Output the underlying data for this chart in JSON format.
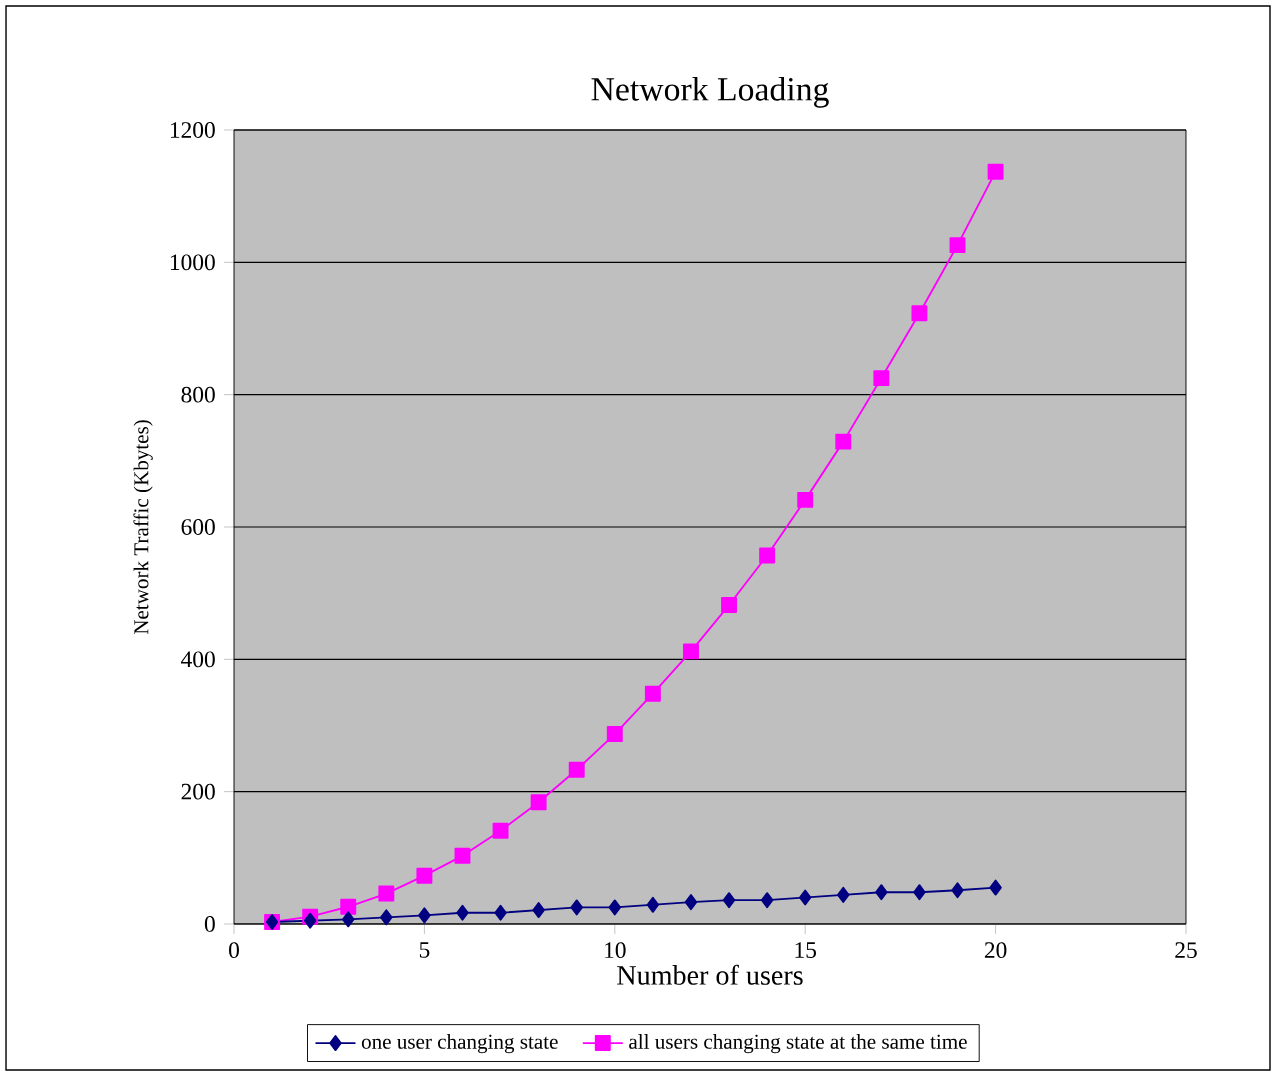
{
  "chart_data": {
    "type": "line",
    "title": "Network Loading",
    "xlabel": "Number of users",
    "ylabel": "Network Traffic (Kbytes)",
    "x": [
      1,
      2,
      3,
      4,
      5,
      6,
      7,
      8,
      9,
      10,
      11,
      12,
      13,
      14,
      15,
      16,
      17,
      18,
      19,
      20
    ],
    "series": [
      {
        "name": "one user changing state",
        "color": "#000080",
        "marker": "diamond",
        "values": [
          3,
          5,
          7,
          10,
          13,
          17,
          17,
          21,
          25,
          25,
          29,
          33,
          36,
          36,
          40,
          44,
          48,
          48,
          51,
          55
        ]
      },
      {
        "name": "all users changing state at the same time",
        "color": "#ff00ff",
        "marker": "square",
        "values": [
          3,
          11,
          26,
          46,
          73,
          103,
          141,
          184,
          233,
          287,
          348,
          412,
          482,
          557,
          641,
          729,
          825,
          923,
          1026,
          1137
        ]
      }
    ],
    "xlim": [
      0,
      25
    ],
    "xticks": [
      0,
      5,
      10,
      15,
      20,
      25
    ],
    "ylim": [
      0,
      1200
    ],
    "yticks": [
      0,
      200,
      400,
      600,
      800,
      1000,
      1200
    ],
    "grid": "y",
    "legend": "bottom",
    "line_style": "solid"
  }
}
